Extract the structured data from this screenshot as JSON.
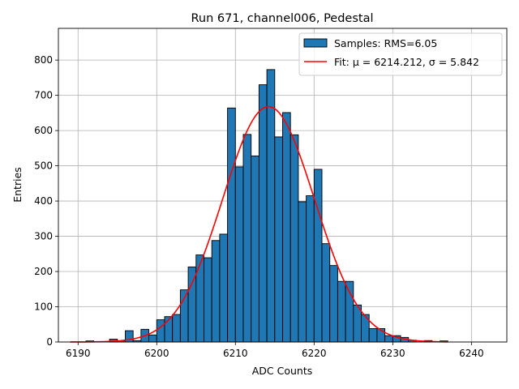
{
  "chart_data": {
    "type": "bar",
    "title": "Run 671, channel006, Pedestal",
    "xlabel": "ADC Counts",
    "ylabel": "Entries",
    "xlim": [
      6187.5,
      6244.5
    ],
    "ylim": [
      0,
      890
    ],
    "xticks": [
      6190,
      6200,
      6210,
      6220,
      6230,
      6240
    ],
    "yticks": [
      0,
      100,
      200,
      300,
      400,
      500,
      600,
      700,
      800
    ],
    "grid": true,
    "legend_position": "top-right",
    "histogram": {
      "name": "Samples: RMS=6.05",
      "color": "#1f77b4",
      "bin_width": 1,
      "bins_left": [
        6191,
        6192,
        6193,
        6194,
        6195,
        6196,
        6197,
        6198,
        6199,
        6200,
        6201,
        6202,
        6203,
        6204,
        6205,
        6206,
        6207,
        6208,
        6209,
        6210,
        6211,
        6212,
        6213,
        6214,
        6215,
        6216,
        6217,
        6218,
        6219,
        6220,
        6221,
        6222,
        6223,
        6224,
        6225,
        6226,
        6227,
        6228,
        6229,
        6230,
        6231,
        6232,
        6233,
        6234,
        6235,
        6236
      ],
      "values": [
        3,
        0,
        0,
        8,
        3,
        32,
        4,
        36,
        20,
        63,
        72,
        78,
        148,
        213,
        247,
        239,
        288,
        306,
        664,
        497,
        589,
        528,
        730,
        773,
        582,
        651,
        588,
        398,
        415,
        490,
        279,
        217,
        172,
        172,
        105,
        78,
        38,
        38,
        18,
        18,
        13,
        5,
        0,
        4,
        0,
        3
      ]
    },
    "fit": {
      "name": "Fit: μ = 6214.212, σ = 5.842",
      "color": "#ff0000",
      "mu": 6214.212,
      "sigma": 5.842,
      "amplitude": 668,
      "x_range": [
        6189,
        6237
      ]
    }
  }
}
